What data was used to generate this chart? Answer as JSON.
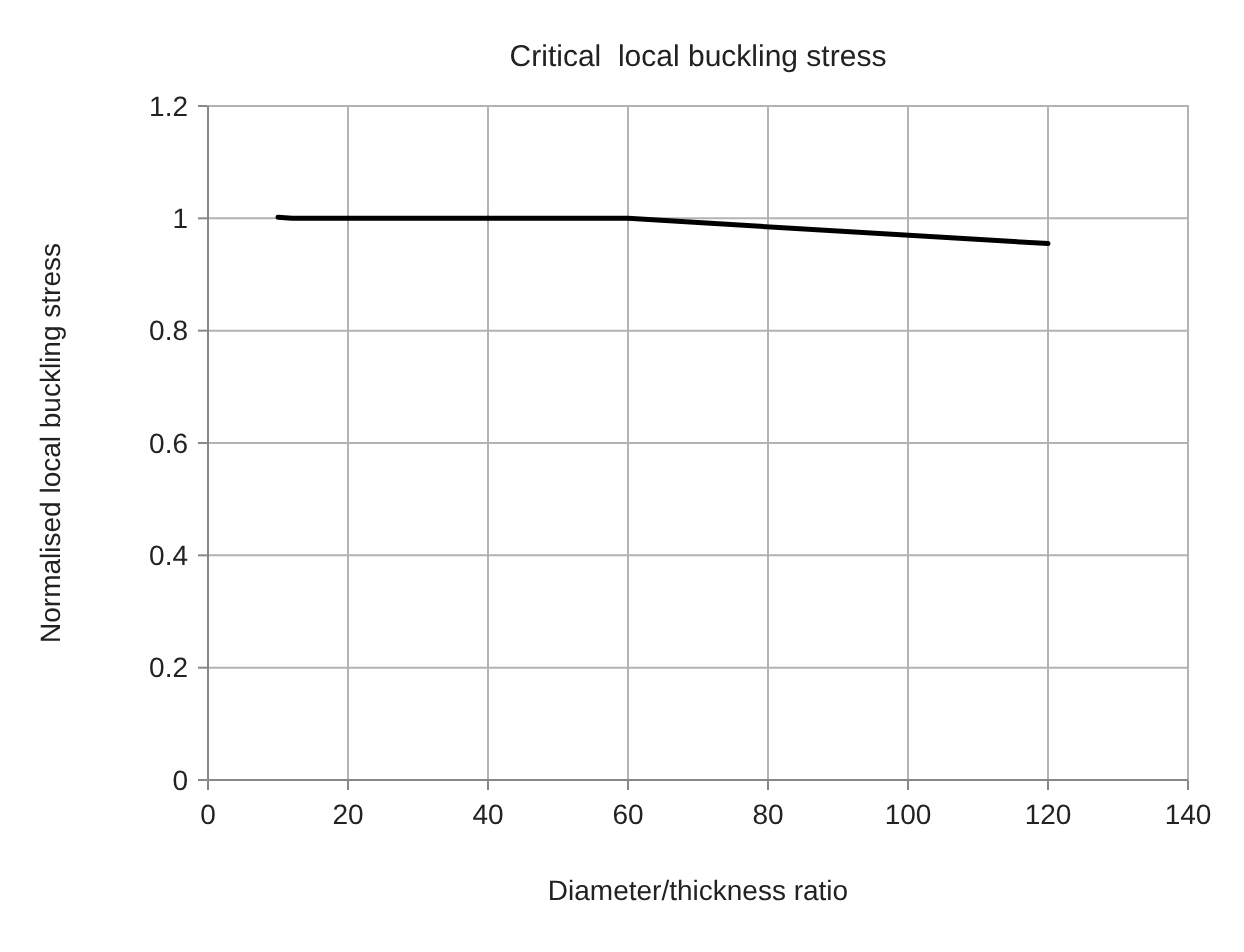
{
  "chart_data": {
    "type": "line",
    "title": "Critical  local buckling stress",
    "xlabel": "Diameter/thickness ratio",
    "ylabel": "Normalised local buckling stress",
    "series": [
      {
        "color": "#000000",
        "x": [
          10,
          12,
          60,
          120
        ],
        "values": [
          1.002,
          1.0,
          1.0,
          0.955
        ]
      }
    ],
    "xlim": [
      0,
      140
    ],
    "xticks": [
      0,
      20,
      40,
      60,
      80,
      100,
      120,
      140
    ],
    "ylim": [
      0,
      1.2
    ],
    "yticks": [
      0,
      0.2,
      0.4,
      0.6,
      0.8,
      1,
      1.2
    ],
    "grid": true,
    "line_style": "solid"
  }
}
